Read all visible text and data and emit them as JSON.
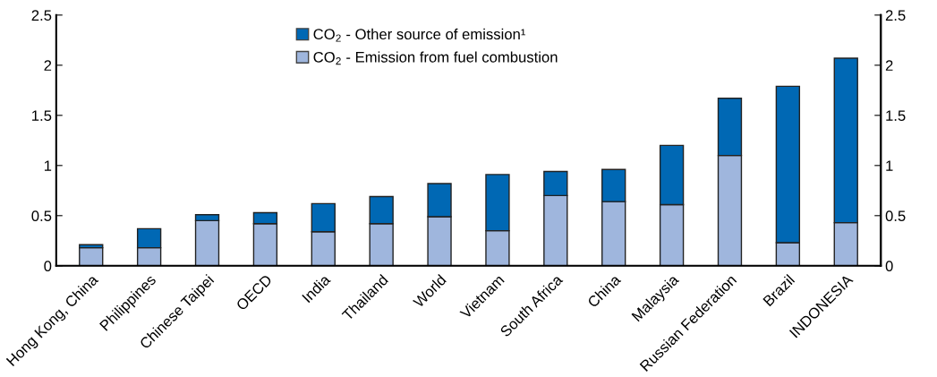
{
  "chart_data": {
    "type": "bar",
    "stacked": true,
    "categories": [
      "Hong Kong, China",
      "Philippines",
      "Chinese Taipei",
      "OECD",
      "India",
      "Thailand",
      "World",
      "Vietnam",
      "South Africa",
      "China",
      "Malaysia",
      "Russian Federation",
      "Brazil",
      "INDONESIA"
    ],
    "series": [
      {
        "name": "CO$_{2}$ - Emission from fuel combustion",
        "color": "#9fb6dd",
        "values": [
          0.18,
          0.18,
          0.45,
          0.42,
          0.34,
          0.42,
          0.49,
          0.35,
          0.7,
          0.64,
          0.61,
          1.1,
          0.23,
          0.43
        ]
      },
      {
        "name": "CO$_{2}$ - Other source of emission¹",
        "color": "#0068b4",
        "values": [
          0.03,
          0.19,
          0.06,
          0.11,
          0.28,
          0.27,
          0.33,
          0.56,
          0.24,
          0.32,
          0.59,
          0.57,
          1.56,
          1.64
        ]
      }
    ],
    "ylim": [
      0,
      2.5
    ],
    "yticks": [
      0,
      0.5,
      1,
      1.5,
      2,
      2.5
    ],
    "y2lim": [
      0,
      2.5
    ],
    "y2ticks": [
      0,
      0.5,
      1,
      1.5,
      2,
      2.5
    ],
    "grid": false,
    "legend": "top"
  }
}
